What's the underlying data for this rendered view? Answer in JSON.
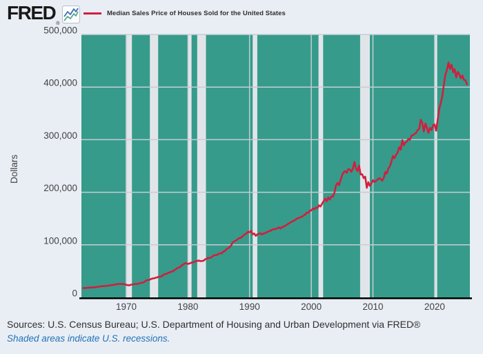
{
  "header": {
    "logo_text": "FRED",
    "logo_registered_mark": "®",
    "legend": {
      "label": "Median Sales Price of Houses Sold for the United States",
      "swatch_color": "#d01f3e"
    }
  },
  "footer": {
    "sources": "Sources: U.S. Census Bureau; U.S. Department of Housing and Urban Development via FRED®",
    "recession_note": "Shaded areas indicate U.S. recessions."
  },
  "chart_data": {
    "type": "line",
    "title": "Median Sales Price of Houses Sold for the United States",
    "xlabel": "",
    "ylabel": "Dollars",
    "frequency": "quarterly",
    "xlim": [
      1962.73,
      2025.72
    ],
    "ylim": [
      0,
      500000
    ],
    "grid": true,
    "legend_position": "top-left-above-plot",
    "xticks": [
      {
        "v": 1970,
        "label": "1970"
      },
      {
        "v": 1980,
        "label": "1980"
      },
      {
        "v": 1990,
        "label": "1990"
      },
      {
        "v": 2000,
        "label": "2000"
      },
      {
        "v": 2010,
        "label": "2010"
      },
      {
        "v": 2020,
        "label": "2020"
      }
    ],
    "yticks": [
      {
        "v": 0,
        "label": "0"
      },
      {
        "v": 100000,
        "label": "100,000"
      },
      {
        "v": 200000,
        "label": "200,000"
      },
      {
        "v": 300000,
        "label": "300,000"
      },
      {
        "v": 400000,
        "label": "400,000"
      },
      {
        "v": 500000,
        "label": "500,000"
      }
    ],
    "colors": {
      "page_bg": "#e9eef5",
      "plot_bg": "#369b8b",
      "recession_band": "#e1e5e9",
      "gridline": "#c6cdd3",
      "axis": "#000000",
      "tick_text": "#424242",
      "line": "#d01f3e"
    },
    "recessions": [
      [
        1969.92,
        1970.92
      ],
      [
        1973.83,
        1975.17
      ],
      [
        1980.0,
        1980.58
      ],
      [
        1981.5,
        1982.92
      ],
      [
        1990.5,
        1991.25
      ],
      [
        2001.17,
        2001.92
      ],
      [
        2007.92,
        2009.5
      ],
      [
        2020.08,
        2020.42
      ]
    ],
    "series": [
      {
        "name": "Median Sales Price of Houses Sold for the United States",
        "color": "#d01f3e",
        "points": [
          [
            1963.0,
            17800
          ],
          [
            1963.25,
            18000
          ],
          [
            1963.5,
            17900
          ],
          [
            1963.75,
            18500
          ],
          [
            1964.0,
            18500
          ],
          [
            1964.25,
            18900
          ],
          [
            1964.5,
            19100
          ],
          [
            1964.75,
            18900
          ],
          [
            1965.0,
            19600
          ],
          [
            1965.25,
            20000
          ],
          [
            1965.5,
            20300
          ],
          [
            1965.75,
            21000
          ],
          [
            1966.0,
            21200
          ],
          [
            1966.25,
            21400
          ],
          [
            1966.5,
            21600
          ],
          [
            1966.75,
            21700
          ],
          [
            1967.0,
            22400
          ],
          [
            1967.25,
            22600
          ],
          [
            1967.5,
            23300
          ],
          [
            1967.75,
            23700
          ],
          [
            1968.0,
            23900
          ],
          [
            1968.25,
            24700
          ],
          [
            1968.5,
            25100
          ],
          [
            1968.75,
            25700
          ],
          [
            1969.0,
            25600
          ],
          [
            1969.25,
            25500
          ],
          [
            1969.5,
            25800
          ],
          [
            1969.75,
            25000
          ],
          [
            1970.0,
            23900
          ],
          [
            1970.25,
            23300
          ],
          [
            1970.5,
            22900
          ],
          [
            1970.75,
            24300
          ],
          [
            1971.0,
            24300
          ],
          [
            1971.25,
            25200
          ],
          [
            1971.5,
            25700
          ],
          [
            1971.75,
            25500
          ],
          [
            1972.0,
            26200
          ],
          [
            1972.25,
            27600
          ],
          [
            1972.5,
            27700
          ],
          [
            1972.75,
            28300
          ],
          [
            1973.0,
            29900
          ],
          [
            1973.25,
            32500
          ],
          [
            1973.5,
            32900
          ],
          [
            1973.75,
            33400
          ],
          [
            1974.0,
            34900
          ],
          [
            1974.25,
            35900
          ],
          [
            1974.5,
            36300
          ],
          [
            1974.75,
            37300
          ],
          [
            1975.0,
            38100
          ],
          [
            1975.25,
            39300
          ],
          [
            1975.5,
            39500
          ],
          [
            1975.75,
            40000
          ],
          [
            1976.0,
            43000
          ],
          [
            1976.25,
            44200
          ],
          [
            1976.5,
            44800
          ],
          [
            1976.75,
            46300
          ],
          [
            1977.0,
            47400
          ],
          [
            1977.25,
            48800
          ],
          [
            1977.5,
            49300
          ],
          [
            1977.75,
            51400
          ],
          [
            1978.0,
            53200
          ],
          [
            1978.25,
            55700
          ],
          [
            1978.5,
            56700
          ],
          [
            1978.75,
            58100
          ],
          [
            1979.0,
            60700
          ],
          [
            1979.25,
            62900
          ],
          [
            1979.5,
            64700
          ],
          [
            1979.75,
            64800
          ],
          [
            1980.0,
            63700
          ],
          [
            1980.25,
            64600
          ],
          [
            1980.5,
            65800
          ],
          [
            1980.75,
            66600
          ],
          [
            1981.0,
            67300
          ],
          [
            1981.25,
            68900
          ],
          [
            1981.5,
            69300
          ],
          [
            1981.75,
            70200
          ],
          [
            1982.0,
            69000
          ],
          [
            1982.25,
            69300
          ],
          [
            1982.5,
            69500
          ],
          [
            1982.75,
            72000
          ],
          [
            1983.0,
            73500
          ],
          [
            1983.25,
            75300
          ],
          [
            1983.5,
            74800
          ],
          [
            1983.75,
            76000
          ],
          [
            1984.0,
            78200
          ],
          [
            1984.25,
            79900
          ],
          [
            1984.5,
            80700
          ],
          [
            1984.75,
            81100
          ],
          [
            1985.0,
            82800
          ],
          [
            1985.25,
            84300
          ],
          [
            1985.5,
            83900
          ],
          [
            1985.75,
            87500
          ],
          [
            1986.0,
            88200
          ],
          [
            1986.25,
            92000
          ],
          [
            1986.5,
            93600
          ],
          [
            1986.75,
            95300
          ],
          [
            1987.0,
            98500
          ],
          [
            1987.25,
            104500
          ],
          [
            1987.5,
            106500
          ],
          [
            1987.75,
            108000
          ],
          [
            1988.0,
            110000
          ],
          [
            1988.25,
            112500
          ],
          [
            1988.5,
            113000
          ],
          [
            1988.75,
            115000
          ],
          [
            1989.0,
            118000
          ],
          [
            1989.25,
            120000
          ],
          [
            1989.5,
            121800
          ],
          [
            1989.75,
            124800
          ],
          [
            1990.0,
            123900
          ],
          [
            1990.25,
            126800
          ],
          [
            1990.5,
            120000
          ],
          [
            1990.75,
            121500
          ],
          [
            1991.0,
            117000
          ],
          [
            1991.25,
            120000
          ],
          [
            1991.5,
            120500
          ],
          [
            1991.75,
            122100
          ],
          [
            1992.0,
            119500
          ],
          [
            1992.25,
            121500
          ],
          [
            1992.5,
            122000
          ],
          [
            1992.75,
            124000
          ],
          [
            1993.0,
            125000
          ],
          [
            1993.25,
            126500
          ],
          [
            1993.5,
            127300
          ],
          [
            1993.75,
            129200
          ],
          [
            1994.0,
            130000
          ],
          [
            1994.25,
            130000
          ],
          [
            1994.5,
            131500
          ],
          [
            1994.75,
            133500
          ],
          [
            1995.0,
            130900
          ],
          [
            1995.25,
            133900
          ],
          [
            1995.5,
            134000
          ],
          [
            1995.75,
            136300
          ],
          [
            1996.0,
            137800
          ],
          [
            1996.25,
            140000
          ],
          [
            1996.5,
            141500
          ],
          [
            1996.75,
            143400
          ],
          [
            1997.0,
            145200
          ],
          [
            1997.25,
            146000
          ],
          [
            1997.5,
            148500
          ],
          [
            1997.75,
            150500
          ],
          [
            1998.0,
            151200
          ],
          [
            1998.25,
            152500
          ],
          [
            1998.5,
            153700
          ],
          [
            1998.75,
            155500
          ],
          [
            1999.0,
            157500
          ],
          [
            1999.25,
            161000
          ],
          [
            1999.5,
            160800
          ],
          [
            1999.75,
            165000
          ],
          [
            2000.0,
            165300
          ],
          [
            2000.25,
            169000
          ],
          [
            2000.5,
            167500
          ],
          [
            2000.75,
            171000
          ],
          [
            2001.0,
            169800
          ],
          [
            2001.25,
            175200
          ],
          [
            2001.5,
            172900
          ],
          [
            2001.75,
            178200
          ],
          [
            2002.0,
            182900
          ],
          [
            2002.25,
            187600
          ],
          [
            2002.5,
            183000
          ],
          [
            2002.75,
            190100
          ],
          [
            2003.0,
            186000
          ],
          [
            2003.25,
            191800
          ],
          [
            2003.5,
            191900
          ],
          [
            2003.75,
            198800
          ],
          [
            2004.0,
            212700
          ],
          [
            2004.25,
            217600
          ],
          [
            2004.5,
            213500
          ],
          [
            2004.75,
            223100
          ],
          [
            2005.0,
            232500
          ],
          [
            2005.25,
            237900
          ],
          [
            2005.5,
            240100
          ],
          [
            2005.75,
            237000
          ],
          [
            2006.0,
            243800
          ],
          [
            2006.25,
            243200
          ],
          [
            2006.5,
            239000
          ],
          [
            2006.75,
            244700
          ],
          [
            2007.0,
            257400
          ],
          [
            2007.25,
            245200
          ],
          [
            2007.5,
            240300
          ],
          [
            2007.75,
            250800
          ],
          [
            2008.0,
            233900
          ],
          [
            2008.25,
            234300
          ],
          [
            2008.5,
            226800
          ],
          [
            2008.75,
            229600
          ],
          [
            2009.0,
            208400
          ],
          [
            2009.25,
            219000
          ],
          [
            2009.5,
            212200
          ],
          [
            2009.75,
            216700
          ],
          [
            2010.0,
            222900
          ],
          [
            2010.25,
            219500
          ],
          [
            2010.5,
            221800
          ],
          [
            2010.75,
            224000
          ],
          [
            2011.0,
            226900
          ],
          [
            2011.25,
            225000
          ],
          [
            2011.5,
            222000
          ],
          [
            2011.75,
            227200
          ],
          [
            2012.0,
            238400
          ],
          [
            2012.25,
            235700
          ],
          [
            2012.5,
            245200
          ],
          [
            2012.75,
            249600
          ],
          [
            2013.0,
            258400
          ],
          [
            2013.25,
            268900
          ],
          [
            2013.5,
            264800
          ],
          [
            2013.75,
            271300
          ],
          [
            2014.0,
            275200
          ],
          [
            2014.25,
            285800
          ],
          [
            2014.5,
            281000
          ],
          [
            2014.75,
            298900
          ],
          [
            2015.0,
            289200
          ],
          [
            2015.25,
            294200
          ],
          [
            2015.5,
            296700
          ],
          [
            2015.75,
            301500
          ],
          [
            2016.0,
            299800
          ],
          [
            2016.25,
            307800
          ],
          [
            2016.5,
            308700
          ],
          [
            2016.75,
            310900
          ],
          [
            2017.0,
            313100
          ],
          [
            2017.25,
            318200
          ],
          [
            2017.5,
            320500
          ],
          [
            2017.75,
            337900
          ],
          [
            2018.0,
            331800
          ],
          [
            2018.25,
            315600
          ],
          [
            2018.5,
            330600
          ],
          [
            2018.75,
            322800
          ],
          [
            2019.0,
            313000
          ],
          [
            2019.25,
            322500
          ],
          [
            2019.5,
            318400
          ],
          [
            2019.75,
            327100
          ],
          [
            2020.0,
            329000
          ],
          [
            2020.25,
            317100
          ],
          [
            2020.5,
            337500
          ],
          [
            2020.75,
            358700
          ],
          [
            2021.0,
            369800
          ],
          [
            2021.25,
            382600
          ],
          [
            2021.5,
            404700
          ],
          [
            2021.75,
            423600
          ],
          [
            2022.0,
            433100
          ],
          [
            2022.25,
            446800
          ],
          [
            2022.5,
            434500
          ],
          [
            2022.75,
            442600
          ],
          [
            2023.0,
            428400
          ],
          [
            2023.25,
            434000
          ],
          [
            2023.5,
            418500
          ],
          [
            2023.75,
            428900
          ],
          [
            2024.0,
            424500
          ],
          [
            2024.25,
            416700
          ],
          [
            2024.5,
            421900
          ],
          [
            2024.75,
            414000
          ],
          [
            2025.0,
            412800
          ],
          [
            2025.25,
            405400
          ]
        ]
      }
    ]
  }
}
